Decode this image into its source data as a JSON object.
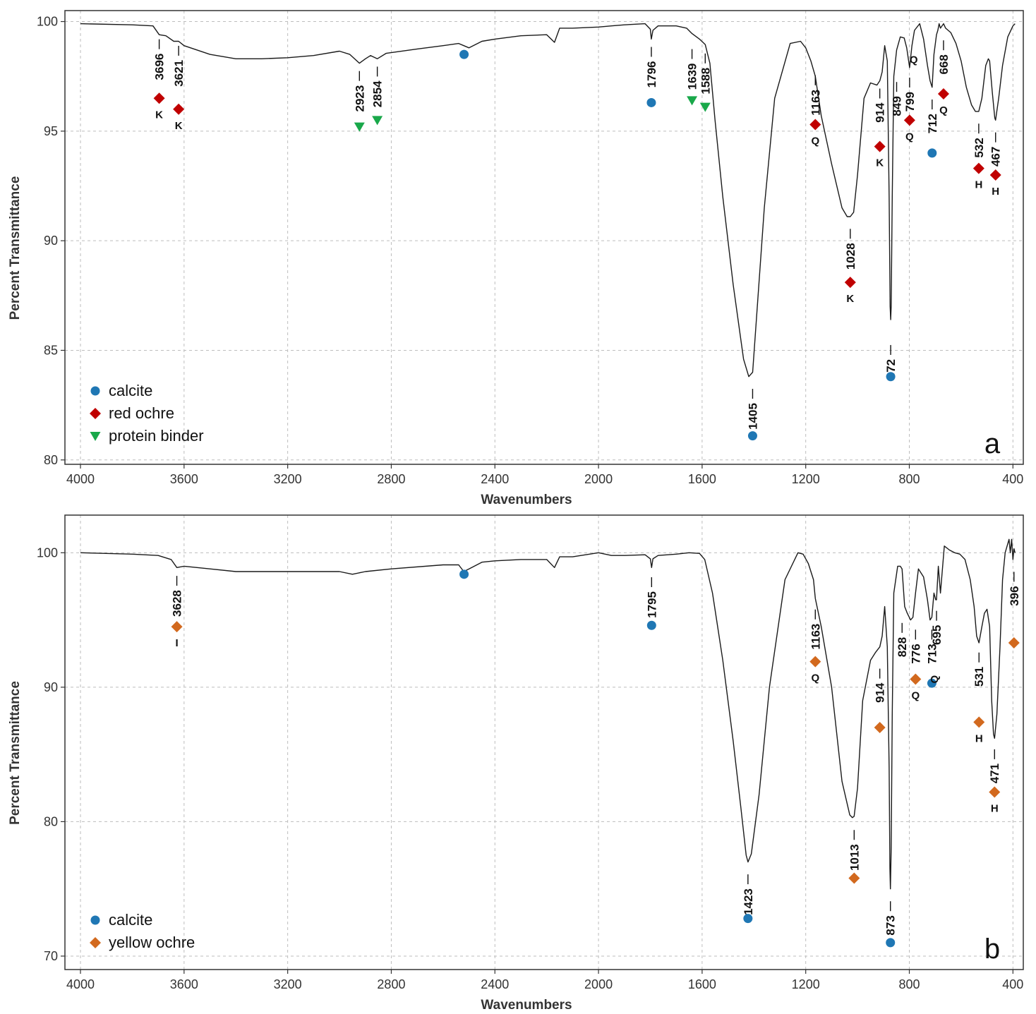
{
  "figure": {
    "panels": [
      {
        "letter": "a",
        "legend": [
          {
            "label": "calcite",
            "marker": "circle",
            "color": "#1f77b4"
          },
          {
            "label": "red ochre",
            "marker": "diamond",
            "color": "#c00000"
          },
          {
            "label": "protein binder",
            "marker": "triangle-down",
            "color": "#19a84a"
          }
        ]
      },
      {
        "letter": "b",
        "legend": [
          {
            "label": "calcite",
            "marker": "circle",
            "color": "#1f77b4"
          },
          {
            "label": "yellow ochre",
            "marker": "diamond",
            "color": "#d2691e"
          }
        ]
      }
    ]
  },
  "chart_data": [
    {
      "type": "line",
      "panel": "a",
      "xlabel": "Wavenumbers",
      "ylabel": "Percent Transmittance",
      "xlim": [
        4060,
        360
      ],
      "ylim": [
        79.8,
        100.5
      ],
      "x_reversed": true,
      "xticks": [
        4000,
        3600,
        3200,
        2800,
        2400,
        2000,
        1600,
        1200,
        800,
        400
      ],
      "yticks": [
        80,
        85,
        90,
        95,
        100
      ],
      "grid": true,
      "legend_position": "bottom-left",
      "series": [
        {
          "x": [
            4000,
            3800,
            3720,
            3696,
            3670,
            3640,
            3621,
            3600,
            3500,
            3400,
            3300,
            3200,
            3100,
            3000,
            2960,
            2923,
            2900,
            2880,
            2854,
            2820,
            2700,
            2600,
            2540,
            2520,
            2500,
            2450,
            2400,
            2300,
            2200,
            2170,
            2150,
            2100,
            2000,
            1950,
            1900,
            1820,
            1800,
            1796,
            1790,
            1770,
            1700,
            1660,
            1639,
            1610,
            1588,
            1570,
            1550,
            1520,
            1480,
            1440,
            1420,
            1405,
            1390,
            1360,
            1320,
            1260,
            1220,
            1200,
            1180,
            1163,
            1140,
            1100,
            1060,
            1040,
            1028,
            1015,
            1000,
            975,
            950,
            925,
            914,
            905,
            895,
            885,
            878,
            874,
            872,
            870,
            866,
            860,
            849,
            835,
            820,
            810,
            799,
            790,
            780,
            760,
            745,
            730,
            720,
            712,
            705,
            695,
            690,
            685,
            680,
            668,
            660,
            640,
            620,
            600,
            580,
            560,
            545,
            532,
            520,
            505,
            495,
            490,
            480,
            470,
            467,
            455,
            440,
            420,
            400,
            392
          ],
          "y": [
            99.9,
            99.85,
            99.8,
            99.4,
            99.35,
            99.1,
            99.1,
            98.9,
            98.5,
            98.3,
            98.3,
            98.35,
            98.45,
            98.65,
            98.5,
            98.1,
            98.3,
            98.45,
            98.3,
            98.55,
            98.75,
            98.9,
            99.0,
            98.9,
            98.8,
            99.1,
            99.2,
            99.35,
            99.4,
            99.05,
            99.7,
            99.7,
            99.75,
            99.8,
            99.85,
            99.9,
            99.65,
            99.2,
            99.6,
            99.8,
            99.8,
            99.7,
            99.45,
            99.2,
            98.95,
            98.1,
            95.5,
            92.0,
            88.0,
            84.6,
            83.8,
            84.0,
            86.5,
            91.5,
            96.5,
            99.0,
            99.1,
            98.8,
            98.2,
            97.5,
            95.7,
            93.5,
            91.5,
            91.1,
            91.1,
            91.3,
            93.0,
            96.5,
            97.2,
            97.1,
            97.3,
            97.7,
            98.9,
            98.2,
            92.0,
            87.0,
            86.4,
            87.0,
            92.0,
            97.5,
            98.7,
            99.3,
            99.25,
            98.8,
            97.9,
            98.9,
            99.6,
            99.9,
            99.2,
            98.0,
            97.3,
            97.0,
            98.5,
            99.4,
            99.6,
            99.9,
            99.7,
            99.9,
            99.7,
            99.5,
            99.0,
            98.2,
            97.0,
            96.2,
            95.9,
            95.9,
            96.5,
            98.0,
            98.3,
            98.2,
            96.8,
            95.6,
            95.5,
            96.5,
            98.0,
            99.3,
            99.8,
            99.9
          ]
        }
      ],
      "peaks": [
        {
          "wn": 3696,
          "label": "3696",
          "tip": 99.45,
          "marker": "diamond",
          "color": "#c00000",
          "my": 96.5,
          "letter": "K"
        },
        {
          "wn": 3621,
          "label": "3621",
          "tip": 99.15,
          "marker": "diamond",
          "color": "#c00000",
          "my": 96.0,
          "letter": "K"
        },
        {
          "wn": 2923,
          "label": "2923",
          "tip": 98.0,
          "marker": "triangle-down",
          "color": "#19a84a",
          "my": 95.2,
          "letter": ""
        },
        {
          "wn": 2854,
          "label": "2854",
          "tip": 98.2,
          "marker": "triangle-down",
          "color": "#19a84a",
          "my": 95.5,
          "letter": ""
        },
        {
          "wn": 2519,
          "label": "",
          "tip": 98.6,
          "marker": "circle",
          "color": "#1f77b4",
          "my": 98.5,
          "letter": ""
        },
        {
          "wn": 1796,
          "label": "1796",
          "tip": 99.1,
          "marker": "circle",
          "color": "#1f77b4",
          "my": 96.3,
          "letter": ""
        },
        {
          "wn": 1639,
          "label": "1639",
          "tip": 99.0,
          "marker": "triangle-down",
          "color": "#19a84a",
          "my": 96.4,
          "letter": ""
        },
        {
          "wn": 1588,
          "label": "1588",
          "tip": 98.8,
          "marker": "triangle-down",
          "color": "#19a84a",
          "my": 96.1,
          "letter": ""
        },
        {
          "wn": 1405,
          "label": "1405",
          "tip": 83.5,
          "marker": "circle",
          "color": "#1f77b4",
          "my": 81.1,
          "letter": ""
        },
        {
          "wn": 1163,
          "label": "1163",
          "tip": 97.8,
          "marker": "diamond",
          "color": "#c00000",
          "my": 95.3,
          "letter": "Q"
        },
        {
          "wn": 1028,
          "label": "1028",
          "tip": 90.8,
          "marker": "diamond",
          "color": "#c00000",
          "my": 88.1,
          "letter": "K"
        },
        {
          "wn": 914,
          "label": "914",
          "tip": 97.2,
          "marker": "diamond",
          "color": "#c00000",
          "my": 94.3,
          "letter": "K"
        },
        {
          "wn": 872,
          "label": "872",
          "tip": 85.5,
          "marker": "circle",
          "color": "#1f77b4",
          "my": 83.8,
          "letter": ""
        },
        {
          "wn": 849,
          "label": "849",
          "tip": 97.5,
          "marker": "",
          "color": "",
          "my": 0,
          "letter": ""
        },
        {
          "wn": 799,
          "label": "799",
          "tip": 97.7,
          "marker": "diamond",
          "color": "#c00000",
          "my": 95.5,
          "letter": "Q"
        },
        {
          "wn": 712,
          "label": "712",
          "tip": 96.7,
          "marker": "circle",
          "color": "#1f77b4",
          "my": 94.0,
          "letter": ""
        },
        {
          "wn": 668,
          "label": "668",
          "tip": 99.4,
          "marker": "diamond",
          "color": "#c00000",
          "my": 96.7,
          "letter": "Q"
        },
        {
          "wn": 532,
          "label": "532",
          "tip": 95.6,
          "marker": "diamond",
          "color": "#c00000",
          "my": 93.3,
          "letter": "H"
        },
        {
          "wn": 467,
          "label": "467",
          "tip": 95.2,
          "marker": "diamond",
          "color": "#c00000",
          "my": 93.0,
          "letter": "H"
        }
      ],
      "free_letters": [
        {
          "wn": 783,
          "y": 98.1,
          "text": "Q"
        }
      ]
    },
    {
      "type": "line",
      "panel": "b",
      "xlabel": "Wavenumbers",
      "ylabel": "Percent Transmittance",
      "xlim": [
        4060,
        360
      ],
      "ylim": [
        69.0,
        102.8
      ],
      "x_reversed": true,
      "xticks": [
        4000,
        3600,
        3200,
        2800,
        2400,
        2000,
        1600,
        1200,
        800,
        400
      ],
      "yticks": [
        70,
        80,
        90,
        100
      ],
      "grid": true,
      "legend_position": "bottom-left",
      "series": [
        {
          "x": [
            4000,
            3800,
            3700,
            3650,
            3628,
            3600,
            3500,
            3400,
            3300,
            3200,
            3000,
            2950,
            2900,
            2800,
            2600,
            2540,
            2520,
            2500,
            2450,
            2400,
            2300,
            2200,
            2170,
            2150,
            2100,
            2000,
            1950,
            1900,
            1820,
            1800,
            1795,
            1790,
            1770,
            1700,
            1650,
            1610,
            1590,
            1560,
            1520,
            1480,
            1450,
            1430,
            1423,
            1410,
            1380,
            1340,
            1280,
            1230,
            1210,
            1190,
            1170,
            1163,
            1140,
            1100,
            1060,
            1030,
            1020,
            1013,
            1000,
            980,
            950,
            930,
            914,
            905,
            895,
            885,
            878,
            875,
            873,
            870,
            866,
            860,
            845,
            835,
            828,
            818,
            808,
            795,
            786,
            776,
            765,
            745,
            730,
            720,
            713,
            705,
            698,
            695,
            688,
            680,
            665,
            645,
            625,
            605,
            585,
            565,
            550,
            540,
            531,
            520,
            510,
            500,
            490,
            482,
            475,
            471,
            462,
            450,
            440,
            430,
            415,
            410,
            405,
            400,
            396,
            392
          ],
          "y": [
            100.0,
            99.9,
            99.8,
            99.5,
            98.9,
            99.0,
            98.8,
            98.6,
            98.6,
            98.6,
            98.6,
            98.4,
            98.6,
            98.8,
            99.1,
            99.1,
            98.6,
            98.8,
            99.3,
            99.4,
            99.5,
            99.5,
            98.9,
            99.7,
            99.7,
            100.0,
            99.8,
            99.8,
            99.85,
            99.55,
            98.9,
            99.55,
            99.8,
            99.9,
            100.0,
            99.95,
            99.5,
            97.0,
            92.0,
            86.0,
            81.0,
            77.5,
            77.0,
            77.6,
            82.0,
            90.0,
            98.0,
            100.0,
            99.9,
            99.2,
            98.0,
            96.6,
            94.5,
            90.0,
            83.0,
            80.5,
            80.3,
            80.4,
            82.5,
            89.0,
            92.0,
            92.6,
            93.0,
            93.8,
            96.0,
            93.0,
            84.0,
            76.5,
            75.0,
            78.0,
            88.0,
            97.0,
            99.0,
            99.0,
            98.8,
            96.0,
            95.5,
            95.0,
            95.2,
            97.0,
            98.8,
            98.2,
            96.5,
            95.0,
            95.2,
            97.0,
            96.5,
            96.5,
            99.0,
            97.0,
            100.5,
            100.2,
            100.0,
            99.9,
            99.5,
            98.0,
            96.0,
            93.8,
            93.3,
            94.5,
            95.5,
            95.8,
            94.5,
            89.0,
            86.5,
            86.2,
            88.0,
            93.0,
            98.0,
            100.0,
            101.0,
            100.0,
            101.0,
            99.5,
            100.3,
            100.0
          ]
        }
      ],
      "peaks": [
        {
          "wn": 3628,
          "label": "3628",
          "tip": 98.7,
          "marker": "diamond",
          "color": "#d2691e",
          "my": 94.5,
          "letter": "I"
        },
        {
          "wn": 2519,
          "label": "",
          "tip": 98.5,
          "marker": "circle",
          "color": "#1f77b4",
          "my": 98.4,
          "letter": ""
        },
        {
          "wn": 1795,
          "label": "1795",
          "tip": 98.6,
          "marker": "circle",
          "color": "#1f77b4",
          "my": 94.6,
          "letter": ""
        },
        {
          "wn": 1423,
          "label": "1423",
          "tip": 76.5,
          "marker": "circle",
          "color": "#1f77b4",
          "my": 72.8,
          "letter": ""
        },
        {
          "wn": 1163,
          "label": "1163",
          "tip": 96.2,
          "marker": "diamond",
          "color": "#d2691e",
          "my": 91.9,
          "letter": "Q"
        },
        {
          "wn": 1013,
          "label": "1013",
          "tip": 79.8,
          "marker": "diamond",
          "color": "#d2691e",
          "my": 75.8,
          "letter": ""
        },
        {
          "wn": 914,
          "label": "914",
          "tip": 91.8,
          "marker": "diamond",
          "color": "#d2691e",
          "my": 87.0,
          "letter": ""
        },
        {
          "wn": 873,
          "label": "873",
          "tip": 74.5,
          "marker": "circle",
          "color": "#1f77b4",
          "my": 71.0,
          "letter": ""
        },
        {
          "wn": 828,
          "label": "828",
          "tip": 95.2,
          "marker": "",
          "color": "",
          "my": 0,
          "letter": ""
        },
        {
          "wn": 776,
          "label": "776",
          "tip": 94.7,
          "marker": "diamond",
          "color": "#d2691e",
          "my": 90.6,
          "letter": "Q"
        },
        {
          "wn": 713,
          "label": "713",
          "tip": 94.7,
          "marker": "circle",
          "color": "#1f77b4",
          "my": 90.3,
          "letter": ""
        },
        {
          "wn": 695,
          "label": "695",
          "tip": 96.1,
          "marker": "",
          "color": "",
          "my": 0,
          "letter": "Q"
        },
        {
          "wn": 531,
          "label": "531",
          "tip": 93.0,
          "marker": "diamond",
          "color": "#d2691e",
          "my": 87.4,
          "letter": "H"
        },
        {
          "wn": 471,
          "label": "471",
          "tip": 85.8,
          "marker": "diamond",
          "color": "#d2691e",
          "my": 82.2,
          "letter": "H"
        },
        {
          "wn": 396,
          "label": "396",
          "tip": 99.0,
          "marker": "diamond",
          "color": "#d2691e",
          "my": 93.3,
          "letter": ""
        }
      ],
      "free_letters": []
    }
  ]
}
